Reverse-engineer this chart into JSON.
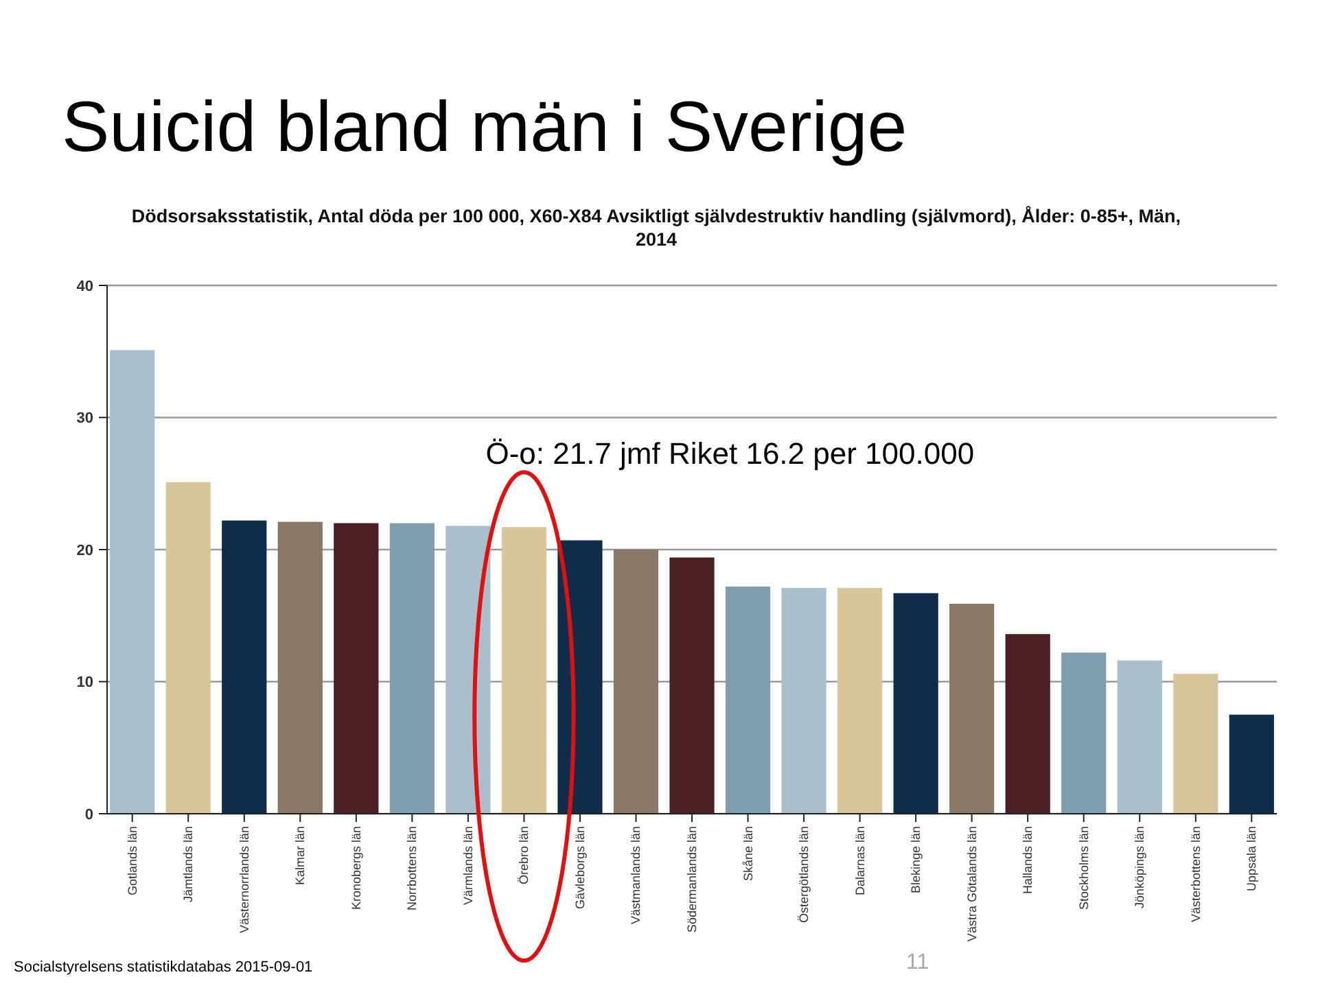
{
  "chart_data": {
    "type": "bar",
    "title": "Suicid bland män i Sverige",
    "subtitle": "Dödsorsaksstatistik, Antal döda per 100 000, X60-X84 Avsiktligt självdestruktiv handling (självmord), Ålder: 0-85+, Män, 2014",
    "categories": [
      "Gotlands län",
      "Jämtlands län",
      "Västernorrlands län",
      "Kalmar län",
      "Kronobergs län",
      "Norrbottens län",
      "Värmlands län",
      "Örebro län",
      "Gävleborgs län",
      "Västmanlands län",
      "Södermanlands län",
      "Skåne län",
      "Östergötlands län",
      "Dalarnas län",
      "Blekinge län",
      "Västra Götalands län",
      "Hallands län",
      "Stockholms län",
      "Jönköpings län",
      "Västerbottens län",
      "Uppsala län"
    ],
    "values": [
      35.1,
      25.1,
      22.2,
      22.1,
      22.0,
      22.0,
      21.8,
      21.7,
      20.7,
      20.0,
      19.4,
      17.2,
      17.1,
      17.1,
      16.7,
      15.9,
      13.6,
      12.2,
      11.6,
      10.6,
      7.5
    ],
    "colors": [
      "#a9c0cc",
      "#d8c59a",
      "#0f2c4a",
      "#8a7866",
      "#4a1e22",
      "#7e9db0",
      "#a9c0cc",
      "#d8c59a",
      "#0f2c4a",
      "#8a7866",
      "#4a1e22",
      "#7e9db0",
      "#a9c0cc",
      "#d8c59a",
      "#0f2c4a",
      "#8a7866",
      "#4a1e22",
      "#7e9db0",
      "#a9c0cc",
      "#d8c59a",
      "#0f2c4a"
    ],
    "ylim": [
      0,
      40
    ],
    "yticks": [
      0,
      10,
      20,
      30,
      40
    ],
    "grid": "y",
    "annotations": [
      {
        "text": "Ö-o: 21.7 jmf Riket 16.2 per 100.000",
        "x": "Örebro län",
        "y": 21.7
      },
      "Socialstyrelsens statistikdatabas 2015-09-01",
      "11"
    ]
  }
}
